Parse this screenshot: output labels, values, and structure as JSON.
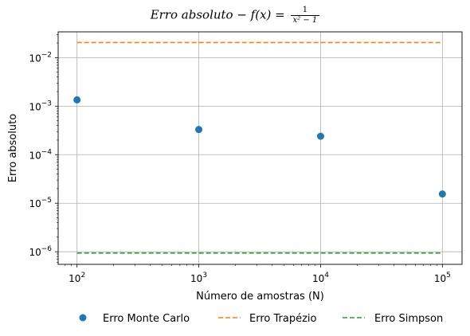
{
  "chart_data": {
    "type": "scatter",
    "title": {
      "prefix": "Erro absoluto − f(x) =",
      "frac_num": "1",
      "frac_den": "x² − 1"
    },
    "xlabel": "Número de amostras (N)",
    "ylabel": "Erro absoluto",
    "xscale": "log",
    "yscale": "log",
    "xlim": [
      70,
      145000
    ],
    "ylim": [
      5.5e-07,
      0.034
    ],
    "x_ticks": [
      {
        "value": 100,
        "base": "10",
        "exp": "2"
      },
      {
        "value": 1000,
        "base": "10",
        "exp": "3"
      },
      {
        "value": 10000,
        "base": "10",
        "exp": "4"
      },
      {
        "value": 100000,
        "base": "10",
        "exp": "5"
      }
    ],
    "y_ticks": [
      {
        "value": 1e-06,
        "base": "10",
        "exp": "−6"
      },
      {
        "value": 1e-05,
        "base": "10",
        "exp": "−5"
      },
      {
        "value": 0.0001,
        "base": "10",
        "exp": "−4"
      },
      {
        "value": 0.001,
        "base": "10",
        "exp": "−3"
      },
      {
        "value": 0.01,
        "base": "10",
        "exp": "−2"
      }
    ],
    "grid": true,
    "legend_placement": "bottom-center",
    "series": [
      {
        "name": "Erro Monte Carlo",
        "style": "markers",
        "color": "#1f77b4",
        "x": [
          100,
          1000,
          10000,
          100000
        ],
        "y": [
          0.00135,
          0.00033,
          0.00024,
          1.55e-05
        ]
      },
      {
        "name": "Erro Trapézio",
        "style": "dashed-line",
        "color": "#ff7f0e",
        "x": [
          100,
          1000,
          10000,
          100000
        ],
        "y": [
          0.0205,
          0.0205,
          0.0205,
          0.0205
        ]
      },
      {
        "name": "Erro Simpson",
        "style": "dashed-line",
        "color": "#2ca02c",
        "x": [
          100,
          1000,
          10000,
          100000
        ],
        "y": [
          9.4e-07,
          9.4e-07,
          9.4e-07,
          9.4e-07
        ]
      }
    ]
  }
}
